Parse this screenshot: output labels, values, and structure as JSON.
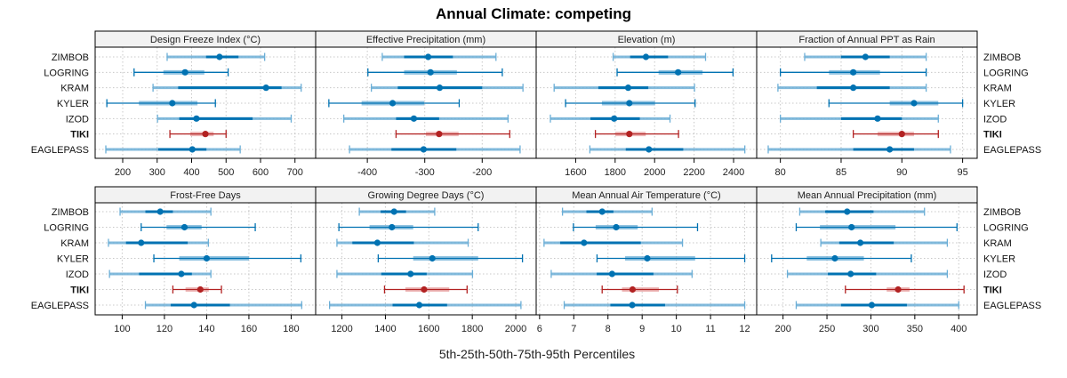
{
  "chart_data": {
    "type": "dotplot-interval",
    "title": "Annual Climate: competing",
    "xlabel": "5th-25th-50th-75th-95th Percentiles",
    "ylabel": "",
    "grid": true,
    "legend": "none",
    "highlight_site": "TIKI",
    "sites": [
      "ZIMBOB",
      "LOGRING",
      "KRAM",
      "KYLER",
      "IZOD",
      "TIKI",
      "EAGLEPASS"
    ],
    "colors": {
      "normal_dark": "#0072B2",
      "normal_light": "#6BAED6",
      "highlight_dark": "#B22222",
      "highlight_light": "#E8A0A0",
      "strip_bg": "#F2F2F2",
      "grid": "#C8C8C8"
    },
    "panels": [
      {
        "title": "Design Freeze Index (°C)",
        "xlim": [
          120,
          760
        ],
        "ticks": [
          200,
          300,
          400,
          500,
          600,
          700
        ],
        "tick_labels": [
          "200",
          "300",
          "400",
          "500",
          "600",
          "700"
        ],
        "series": [
          {
            "site": "ZIMBOB",
            "p5": 329,
            "p25": 442,
            "p50": 481,
            "p75": 536,
            "p95": 612
          },
          {
            "site": "LOGRING",
            "p5": 233,
            "p25": 318,
            "p50": 381,
            "p75": 437,
            "p95": 506
          },
          {
            "site": "KRAM",
            "p5": 288,
            "p25": 361,
            "p50": 616,
            "p75": 661,
            "p95": 718
          },
          {
            "site": "KYLER",
            "p5": 154,
            "p25": 247,
            "p50": 344,
            "p75": 417,
            "p95": 469
          },
          {
            "site": "IZOD",
            "p5": 301,
            "p25": 364,
            "p50": 414,
            "p75": 577,
            "p95": 689
          },
          {
            "site": "TIKI",
            "p5": 337,
            "p25": 396,
            "p50": 440,
            "p75": 464,
            "p95": 500
          },
          {
            "site": "EAGLEPASS",
            "p5": 151,
            "p25": 303,
            "p50": 402,
            "p75": 443,
            "p95": 541
          }
        ]
      },
      {
        "title": "Effective Precipitation (mm)",
        "xlim": [
          -490,
          -106
        ],
        "ticks": [
          -400,
          -300,
          -200
        ],
        "tick_labels": [
          "-400",
          "-300",
          "-200"
        ],
        "series": [
          {
            "site": "ZIMBOB",
            "p5": -374,
            "p25": -336,
            "p50": -294,
            "p75": -251,
            "p95": -176
          },
          {
            "site": "LOGRING",
            "p5": -399,
            "p25": -336,
            "p50": -290,
            "p75": -244,
            "p95": -165
          },
          {
            "site": "KRAM",
            "p5": -393,
            "p25": -347,
            "p50": -274,
            "p75": -200,
            "p95": -129
          },
          {
            "site": "KYLER",
            "p5": -467,
            "p25": -410,
            "p50": -356,
            "p75": -301,
            "p95": -240
          },
          {
            "site": "IZOD",
            "p5": -441,
            "p25": -350,
            "p50": -319,
            "p75": -275,
            "p95": -155
          },
          {
            "site": "TIKI",
            "p5": -350,
            "p25": -298,
            "p50": -275,
            "p75": -241,
            "p95": -152
          },
          {
            "site": "EAGLEPASS",
            "p5": -431,
            "p25": -358,
            "p50": -302,
            "p75": -245,
            "p95": -134
          }
        ]
      },
      {
        "title": "Elevation (m)",
        "xlim": [
          1400,
          2517
        ],
        "ticks": [
          1600,
          1800,
          2000,
          2200,
          2400
        ],
        "tick_labels": [
          "1600",
          "1800",
          "2000",
          "2200",
          "2400"
        ],
        "series": [
          {
            "site": "ZIMBOB",
            "p5": 1790,
            "p25": 1876,
            "p50": 1956,
            "p75": 2068,
            "p95": 2258
          },
          {
            "site": "LOGRING",
            "p5": 1810,
            "p25": 2020,
            "p50": 2119,
            "p75": 2243,
            "p95": 2397
          },
          {
            "site": "KRAM",
            "p5": 1491,
            "p25": 1715,
            "p50": 1866,
            "p75": 1968,
            "p95": 2202
          },
          {
            "site": "KYLER",
            "p5": 1549,
            "p25": 1733,
            "p50": 1872,
            "p75": 2002,
            "p95": 2205
          },
          {
            "site": "IZOD",
            "p5": 1472,
            "p25": 1675,
            "p50": 1795,
            "p75": 1925,
            "p95": 2078
          },
          {
            "site": "TIKI",
            "p5": 1700,
            "p25": 1801,
            "p50": 1872,
            "p75": 1955,
            "p95": 2121
          },
          {
            "site": "EAGLEPASS",
            "p5": 1672,
            "p25": 1854,
            "p50": 1971,
            "p75": 2145,
            "p95": 2457
          }
        ]
      },
      {
        "title": "Fraction of Annual PPT as Rain",
        "xlim": [
          78.05,
          96.2
        ],
        "ticks": [
          80,
          85,
          90,
          95
        ],
        "tick_labels": [
          "80",
          "85",
          "90",
          "95"
        ],
        "series": [
          {
            "site": "ZIMBOB",
            "p5": 82,
            "p25": 85,
            "p50": 87,
            "p75": 89,
            "p95": 92
          },
          {
            "site": "LOGRING",
            "p5": 80,
            "p25": 84,
            "p50": 86,
            "p75": 88.2,
            "p95": 92
          },
          {
            "site": "KRAM",
            "p5": 79.8,
            "p25": 83,
            "p50": 86,
            "p75": 89,
            "p95": 92
          },
          {
            "site": "KYLER",
            "p5": 84,
            "p25": 89,
            "p50": 91,
            "p75": 93,
            "p95": 95
          },
          {
            "site": "IZOD",
            "p5": 80,
            "p25": 85,
            "p50": 88,
            "p75": 90,
            "p95": 93
          },
          {
            "site": "TIKI",
            "p5": 86,
            "p25": 88,
            "p50": 90,
            "p75": 91,
            "p95": 93
          },
          {
            "site": "EAGLEPASS",
            "p5": 79,
            "p25": 86,
            "p50": 89,
            "p75": 91,
            "p95": 94
          }
        ]
      },
      {
        "title": "Frost-Free Days",
        "xlim": [
          87.2,
          191.6
        ],
        "ticks": [
          100,
          120,
          140,
          160,
          180
        ],
        "tick_labels": [
          "100",
          "120",
          "140",
          "160",
          "180"
        ],
        "series": [
          {
            "site": "ZIMBOB",
            "p5": 99,
            "p25": 111,
            "p50": 118,
            "p75": 124,
            "p95": 142
          },
          {
            "site": "LOGRING",
            "p5": 109,
            "p25": 121,
            "p50": 129.5,
            "p75": 137.6,
            "p95": 163
          },
          {
            "site": "KRAM",
            "p5": 93.5,
            "p25": 101.8,
            "p50": 109,
            "p75": 131,
            "p95": 140.8
          },
          {
            "site": "KYLER",
            "p5": 115,
            "p25": 127,
            "p50": 140,
            "p75": 160,
            "p95": 184.6
          },
          {
            "site": "IZOD",
            "p5": 94,
            "p25": 108,
            "p50": 128,
            "p75": 133,
            "p95": 142
          },
          {
            "site": "TIKI",
            "p5": 124,
            "p25": 130,
            "p50": 137,
            "p75": 141,
            "p95": 147
          },
          {
            "site": "EAGLEPASS",
            "p5": 111,
            "p25": 123,
            "p50": 134,
            "p75": 151,
            "p95": 185
          }
        ]
      },
      {
        "title": "Growing Degree Days (°C)",
        "xlim": [
          1079,
          2094
        ],
        "ticks": [
          1200,
          1400,
          1600,
          1800,
          2000
        ],
        "tick_labels": [
          "1200",
          "1400",
          "1600",
          "1800",
          "2000"
        ],
        "series": [
          {
            "site": "ZIMBOB",
            "p5": 1280,
            "p25": 1378,
            "p50": 1440,
            "p75": 1495,
            "p95": 1627
          },
          {
            "site": "LOGRING",
            "p5": 1186,
            "p25": 1327,
            "p50": 1430,
            "p75": 1528,
            "p95": 1827
          },
          {
            "site": "KRAM",
            "p5": 1177,
            "p25": 1248,
            "p50": 1363,
            "p75": 1531,
            "p95": 1781
          },
          {
            "site": "KYLER",
            "p5": 1367,
            "p25": 1528,
            "p50": 1616,
            "p75": 1827,
            "p95": 2031
          },
          {
            "site": "IZOD",
            "p5": 1177,
            "p25": 1381,
            "p50": 1516,
            "p75": 1590,
            "p95": 1801
          },
          {
            "site": "TIKI",
            "p5": 1396,
            "p25": 1492,
            "p50": 1578,
            "p75": 1694,
            "p95": 1776
          },
          {
            "site": "EAGLEPASS",
            "p5": 1143,
            "p25": 1433,
            "p50": 1556,
            "p75": 1684,
            "p95": 2024
          }
        ]
      },
      {
        "title": "Mean Annual Air Temperature (°C)",
        "xlim": [
          5.9,
          12.35
        ],
        "ticks": [
          6,
          7,
          8,
          9,
          10,
          11,
          12
        ],
        "tick_labels": [
          "6",
          "7",
          "8",
          "9",
          "10",
          "11",
          "12"
        ],
        "series": [
          {
            "site": "ZIMBOB",
            "p5": 6.67,
            "p25": 7.37,
            "p50": 7.83,
            "p75": 8.16,
            "p95": 9.29
          },
          {
            "site": "LOGRING",
            "p5": 6.99,
            "p25": 7.64,
            "p50": 8.24,
            "p75": 8.87,
            "p95": 10.62
          },
          {
            "site": "KRAM",
            "p5": 6.13,
            "p25": 6.6,
            "p50": 7.3,
            "p75": 8.96,
            "p95": 10.18
          },
          {
            "site": "KYLER",
            "p5": 7.68,
            "p25": 8.5,
            "p50": 9.15,
            "p75": 10.55,
            "p95": 12.0
          },
          {
            "site": "IZOD",
            "p5": 6.34,
            "p25": 7.67,
            "p50": 8.12,
            "p75": 9.33,
            "p95": 10.46
          },
          {
            "site": "TIKI",
            "p5": 7.83,
            "p25": 8.41,
            "p50": 8.72,
            "p75": 9.49,
            "p95": 10.03
          },
          {
            "site": "EAGLEPASS",
            "p5": 6.72,
            "p25": 8.07,
            "p50": 8.71,
            "p75": 9.67,
            "p95": 12.0
          }
        ]
      },
      {
        "title": "Mean Annual Precipitation (mm)",
        "xlim": [
          170,
          421
        ],
        "ticks": [
          200,
          250,
          300,
          350,
          400
        ],
        "tick_labels": [
          "200",
          "250",
          "300",
          "350",
          "400"
        ],
        "series": [
          {
            "site": "ZIMBOB",
            "p5": 219,
            "p25": 248,
            "p50": 273,
            "p75": 303,
            "p95": 361
          },
          {
            "site": "LOGRING",
            "p5": 215,
            "p25": 242,
            "p50": 278,
            "p75": 328,
            "p95": 398
          },
          {
            "site": "KRAM",
            "p5": 243,
            "p25": 264,
            "p50": 288,
            "p75": 326,
            "p95": 387
          },
          {
            "site": "KYLER",
            "p5": 187,
            "p25": 227,
            "p50": 259,
            "p75": 292,
            "p95": 346
          },
          {
            "site": "IZOD",
            "p5": 205,
            "p25": 251,
            "p50": 277,
            "p75": 306,
            "p95": 387
          },
          {
            "site": "TIKI",
            "p5": 271,
            "p25": 318,
            "p50": 331,
            "p75": 344,
            "p95": 406
          },
          {
            "site": "EAGLEPASS",
            "p5": 215,
            "p25": 266,
            "p50": 301,
            "p75": 341,
            "p95": 400
          }
        ]
      }
    ]
  }
}
